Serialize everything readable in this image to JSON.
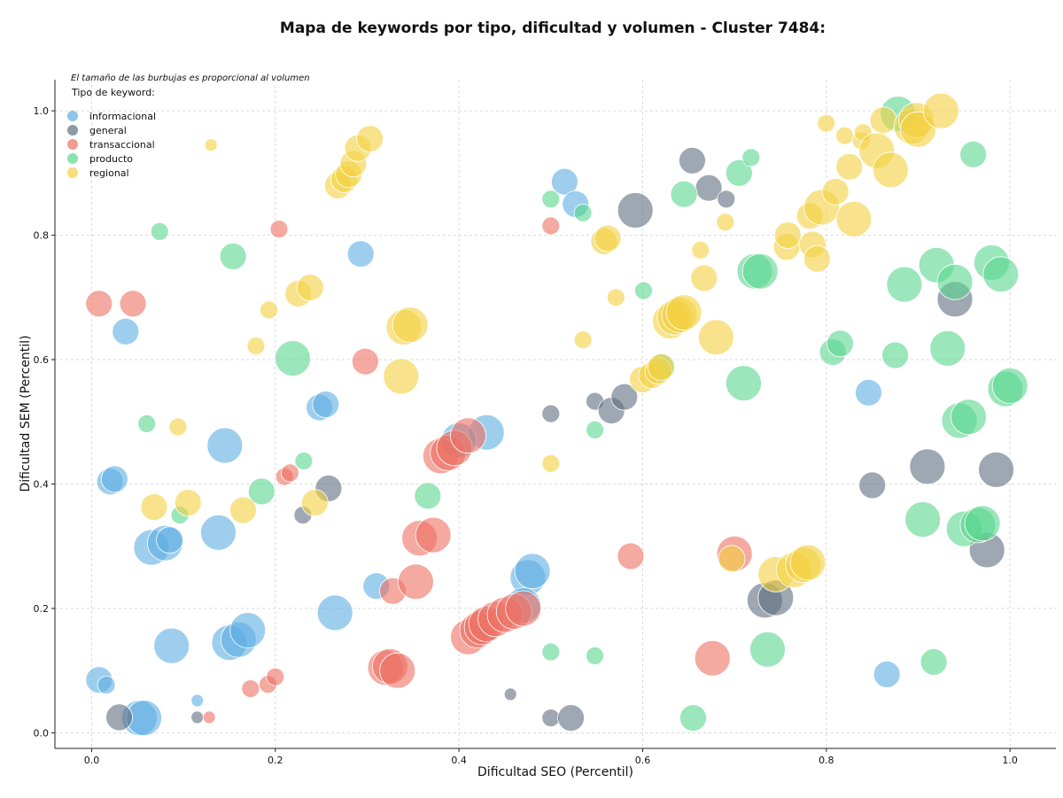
{
  "chart_data": {
    "type": "scatter",
    "title": "Mapa de keywords por tipo, dificultad y volumen - Cluster 7484:",
    "xlabel": "Dificultad SEO (Percentil)",
    "ylabel": "Dificultad SEM (Percentil)",
    "xlim": [
      -0.04,
      1.05
    ],
    "ylim": [
      -0.025,
      1.05
    ],
    "xticks": [
      "0.0",
      "0.2",
      "0.4",
      "0.6",
      "0.8",
      "1.0"
    ],
    "yticks": [
      "0.0",
      "0.2",
      "0.4",
      "0.6",
      "0.8",
      "1.0"
    ],
    "grid": true,
    "annotation": "El tamaño de las burbujas es proporcional al volumen",
    "legend": {
      "title": "Tipo de keyword:",
      "placement": "top-left"
    },
    "series": [
      {
        "name": "informacional",
        "color": "#5DADE2",
        "points": [
          [
            0.037,
            0.645,
            2
          ],
          [
            0.145,
            0.462,
            3
          ],
          [
            0.138,
            0.322,
            3
          ],
          [
            0.065,
            0.298,
            3
          ],
          [
            0.08,
            0.305,
            3
          ],
          [
            0.085,
            0.31,
            2
          ],
          [
            0.02,
            0.404,
            2
          ],
          [
            0.025,
            0.408,
            2
          ],
          [
            0.087,
            0.14,
            3
          ],
          [
            0.15,
            0.145,
            3
          ],
          [
            0.16,
            0.15,
            3
          ],
          [
            0.17,
            0.165,
            3
          ],
          [
            0.265,
            0.193,
            3
          ],
          [
            0.31,
            0.236,
            2
          ],
          [
            0.293,
            0.77,
            2
          ],
          [
            0.248,
            0.523,
            2
          ],
          [
            0.255,
            0.528,
            2
          ],
          [
            0.052,
            0.024,
            3
          ],
          [
            0.057,
            0.024,
            3
          ],
          [
            0.008,
            0.085,
            2
          ],
          [
            0.016,
            0.077,
            1
          ],
          [
            0.115,
            0.052,
            0
          ],
          [
            0.43,
            0.483,
            3
          ],
          [
            0.4,
            0.47,
            3
          ],
          [
            0.475,
            0.25,
            3
          ],
          [
            0.48,
            0.26,
            3
          ],
          [
            0.515,
            0.886,
            2
          ],
          [
            0.527,
            0.85,
            2
          ],
          [
            0.846,
            0.547,
            2
          ],
          [
            0.866,
            0.094,
            2
          ],
          [
            0.47,
            0.205,
            3
          ]
        ]
      },
      {
        "name": "general",
        "color": "#5D6D7E",
        "points": [
          [
            0.03,
            0.025,
            2
          ],
          [
            0.115,
            0.025,
            0
          ],
          [
            0.23,
            0.35,
            1
          ],
          [
            0.258,
            0.393,
            2
          ],
          [
            0.456,
            0.062,
            0
          ],
          [
            0.5,
            0.513,
            1
          ],
          [
            0.5,
            0.024,
            1
          ],
          [
            0.522,
            0.024,
            2
          ],
          [
            0.548,
            0.533,
            1
          ],
          [
            0.566,
            0.518,
            2
          ],
          [
            0.58,
            0.54,
            2
          ],
          [
            0.592,
            0.84,
            3
          ],
          [
            0.654,
            0.92,
            2
          ],
          [
            0.672,
            0.876,
            2
          ],
          [
            0.691,
            0.858,
            1
          ],
          [
            0.733,
            0.213,
            3
          ],
          [
            0.745,
            0.217,
            3
          ],
          [
            0.85,
            0.398,
            2
          ],
          [
            0.91,
            0.428,
            3
          ],
          [
            0.94,
            0.697,
            3
          ],
          [
            0.975,
            0.294,
            3
          ],
          [
            0.985,
            0.423,
            3
          ]
        ]
      },
      {
        "name": "transaccional",
        "color": "#EC7063",
        "points": [
          [
            0.008,
            0.69,
            2
          ],
          [
            0.045,
            0.69,
            2
          ],
          [
            0.128,
            0.025,
            0
          ],
          [
            0.173,
            0.071,
            1
          ],
          [
            0.192,
            0.078,
            1
          ],
          [
            0.2,
            0.09,
            1
          ],
          [
            0.204,
            0.81,
            1
          ],
          [
            0.21,
            0.412,
            1
          ],
          [
            0.216,
            0.418,
            1
          ],
          [
            0.298,
            0.597,
            2
          ],
          [
            0.32,
            0.105,
            3
          ],
          [
            0.325,
            0.107,
            3
          ],
          [
            0.333,
            0.1,
            3
          ],
          [
            0.328,
            0.228,
            2
          ],
          [
            0.353,
            0.243,
            3
          ],
          [
            0.357,
            0.313,
            3
          ],
          [
            0.372,
            0.318,
            3
          ],
          [
            0.38,
            0.445,
            3
          ],
          [
            0.388,
            0.45,
            3
          ],
          [
            0.395,
            0.458,
            3
          ],
          [
            0.41,
            0.478,
            3
          ],
          [
            0.41,
            0.154,
            3
          ],
          [
            0.42,
            0.165,
            3
          ],
          [
            0.425,
            0.17,
            3
          ],
          [
            0.43,
            0.175,
            3
          ],
          [
            0.44,
            0.183,
            3
          ],
          [
            0.45,
            0.19,
            3
          ],
          [
            0.46,
            0.195,
            3
          ],
          [
            0.47,
            0.2,
            3
          ],
          [
            0.5,
            0.815,
            1
          ],
          [
            0.587,
            0.284,
            2
          ],
          [
            0.676,
            0.12,
            3
          ],
          [
            0.7,
            0.288,
            3
          ]
        ]
      },
      {
        "name": "producto",
        "color": "#58D68D",
        "points": [
          [
            0.074,
            0.806,
            1
          ],
          [
            0.06,
            0.497,
            1
          ],
          [
            0.096,
            0.35,
            1
          ],
          [
            0.154,
            0.766,
            2
          ],
          [
            0.185,
            0.388,
            2
          ],
          [
            0.219,
            0.602,
            3
          ],
          [
            0.231,
            0.437,
            1
          ],
          [
            0.366,
            0.381,
            2
          ],
          [
            0.5,
            0.858,
            1
          ],
          [
            0.535,
            0.836,
            1
          ],
          [
            0.5,
            0.13,
            1
          ],
          [
            0.548,
            0.487,
            1
          ],
          [
            0.548,
            0.124,
            1
          ],
          [
            0.601,
            0.711,
            1
          ],
          [
            0.621,
            0.588,
            2
          ],
          [
            0.645,
            0.866,
            2
          ],
          [
            0.705,
            0.9,
            2
          ],
          [
            0.718,
            0.925,
            1
          ],
          [
            0.722,
            0.742,
            3
          ],
          [
            0.728,
            0.742,
            3
          ],
          [
            0.71,
            0.562,
            3
          ],
          [
            0.736,
            0.134,
            3
          ],
          [
            0.807,
            0.612,
            2
          ],
          [
            0.815,
            0.626,
            2
          ],
          [
            0.655,
            0.024,
            2
          ],
          [
            0.878,
            0.995,
            3
          ],
          [
            0.885,
            0.721,
            3
          ],
          [
            0.875,
            0.607,
            2
          ],
          [
            0.905,
            0.343,
            3
          ],
          [
            0.917,
            0.114,
            2
          ],
          [
            0.92,
            0.752,
            3
          ],
          [
            0.932,
            0.618,
            3
          ],
          [
            0.94,
            0.725,
            3
          ],
          [
            0.945,
            0.502,
            3
          ],
          [
            0.955,
            0.508,
            3
          ],
          [
            0.96,
            0.93,
            2
          ],
          [
            0.95,
            0.328,
            3
          ],
          [
            0.965,
            0.334,
            3
          ],
          [
            0.97,
            0.337,
            3
          ],
          [
            0.98,
            0.756,
            3
          ],
          [
            0.99,
            0.737,
            3
          ],
          [
            0.995,
            0.553,
            3
          ],
          [
            1.0,
            0.558,
            3
          ]
        ]
      },
      {
        "name": "regional",
        "color": "#F4D03F",
        "points": [
          [
            0.13,
            0.945,
            0
          ],
          [
            0.068,
            0.363,
            2
          ],
          [
            0.094,
            0.492,
            1
          ],
          [
            0.105,
            0.37,
            2
          ],
          [
            0.165,
            0.358,
            2
          ],
          [
            0.179,
            0.622,
            1
          ],
          [
            0.193,
            0.68,
            1
          ],
          [
            0.225,
            0.706,
            2
          ],
          [
            0.238,
            0.716,
            2
          ],
          [
            0.243,
            0.37,
            2
          ],
          [
            0.268,
            0.88,
            2
          ],
          [
            0.275,
            0.89,
            2
          ],
          [
            0.28,
            0.898,
            2
          ],
          [
            0.285,
            0.915,
            2
          ],
          [
            0.29,
            0.94,
            2
          ],
          [
            0.303,
            0.955,
            2
          ],
          [
            0.337,
            0.573,
            3
          ],
          [
            0.34,
            0.652,
            3
          ],
          [
            0.347,
            0.656,
            3
          ],
          [
            0.5,
            0.433,
            1
          ],
          [
            0.535,
            0.632,
            1
          ],
          [
            0.558,
            0.79,
            2
          ],
          [
            0.562,
            0.795,
            2
          ],
          [
            0.571,
            0.7,
            1
          ],
          [
            0.6,
            0.568,
            2
          ],
          [
            0.61,
            0.575,
            2
          ],
          [
            0.617,
            0.582,
            2
          ],
          [
            0.62,
            0.588,
            2
          ],
          [
            0.63,
            0.662,
            3
          ],
          [
            0.635,
            0.668,
            3
          ],
          [
            0.64,
            0.672,
            3
          ],
          [
            0.645,
            0.676,
            3
          ],
          [
            0.663,
            0.776,
            1
          ],
          [
            0.667,
            0.731,
            2
          ],
          [
            0.68,
            0.636,
            3
          ],
          [
            0.69,
            0.821,
            1
          ],
          [
            0.697,
            0.28,
            2
          ],
          [
            0.745,
            0.255,
            3
          ],
          [
            0.757,
            0.781,
            2
          ],
          [
            0.758,
            0.8,
            2
          ],
          [
            0.765,
            0.262,
            3
          ],
          [
            0.775,
            0.27,
            3
          ],
          [
            0.78,
            0.274,
            3
          ],
          [
            0.782,
            0.831,
            2
          ],
          [
            0.785,
            0.785,
            2
          ],
          [
            0.79,
            0.762,
            2
          ],
          [
            0.795,
            0.845,
            3
          ],
          [
            0.8,
            0.98,
            1
          ],
          [
            0.81,
            0.87,
            2
          ],
          [
            0.82,
            0.96,
            1
          ],
          [
            0.825,
            0.91,
            2
          ],
          [
            0.83,
            0.826,
            3
          ],
          [
            0.838,
            0.952,
            1
          ],
          [
            0.84,
            0.965,
            1
          ],
          [
            0.855,
            0.936,
            3
          ],
          [
            0.862,
            0.985,
            2
          ],
          [
            0.87,
            0.905,
            3
          ],
          [
            0.893,
            0.975,
            3
          ],
          [
            0.898,
            0.985,
            3
          ],
          [
            0.9,
            0.97,
            3
          ],
          [
            0.925,
            1.0,
            3
          ]
        ]
      }
    ]
  }
}
